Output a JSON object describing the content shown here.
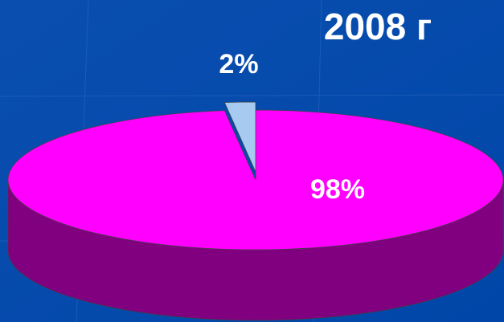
{
  "chart_data": {
    "type": "pie",
    "title": "2008 г",
    "values": [
      98,
      2
    ],
    "value_labels": [
      "98%",
      "2%"
    ],
    "colors": [
      "#ff00ff",
      "#a6caf0"
    ],
    "side_colors": [
      "#800080",
      "#6a8fc0"
    ],
    "explode": [
      false,
      true
    ]
  }
}
